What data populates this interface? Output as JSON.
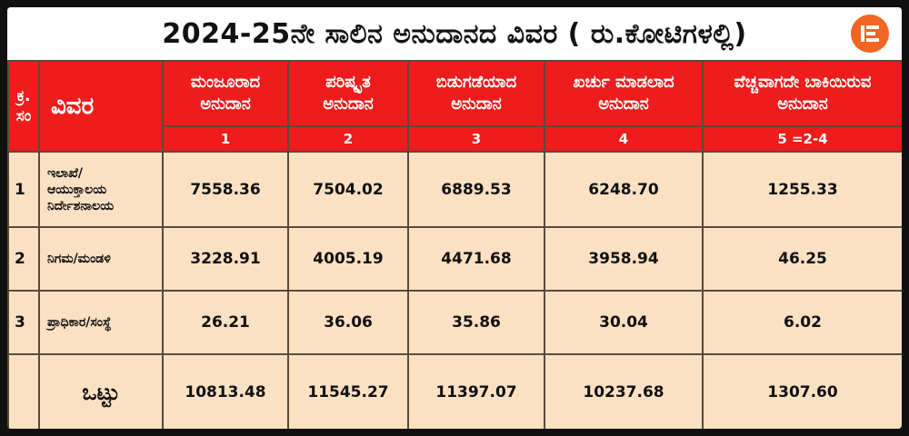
{
  "title": "2024-25ನೇ ಸಾಲಿನ ಅನುದಾನದ ವಿವರ ( ರು.ಕೋಟಿಗಳಲ್ಲಿ)",
  "logo_icon": "brand-e-logo",
  "colors": {
    "header_red": "#ee1c1c",
    "body_bg": "#fbe1c3",
    "logo_orange": "#f26522"
  },
  "table": {
    "headers": {
      "sn": "ಕ್ರ. ಸಂ",
      "desc": "ವಿವರ",
      "cols": [
        {
          "line1": "ಮಂಜೂರಾದ",
          "line2": "ಅನುದಾನ",
          "index": "1"
        },
        {
          "line1": "ಪರಿಷ್ಕೃತ",
          "line2": "ಅನುದಾನ",
          "index": "2"
        },
        {
          "line1": "ಬಿಡುಗಡೆಯಾದ",
          "line2": "ಅನುದಾನ",
          "index": "3"
        },
        {
          "line1": "ಖರ್ಚು ಮಾಡಲಾದ",
          "line2": "ಅನುದಾನ",
          "index": "4"
        },
        {
          "line1": "ವೆಚ್ಚವಾಗದೇ ಬಾಕಿಯಿರುವ",
          "line2": "ಅನುದಾನ",
          "index": "5 =2-4"
        }
      ]
    },
    "rows": [
      {
        "sn": "1",
        "desc_line1": "ಇಲಾಖೆ/",
        "desc_line2": "ಆಯುಕ್ತಾಲಯ",
        "desc_line3": "ನಿರ್ದೇಶನಾಲಯ",
        "values": [
          "7558.36",
          "7504.02",
          "6889.53",
          "6248.70",
          "1255.33"
        ]
      },
      {
        "sn": "2",
        "desc_line1": "ನಿಗಮ/ಮಂಡಳಿ",
        "desc_line2": "",
        "desc_line3": "",
        "values": [
          "3228.91",
          "4005.19",
          "4471.68",
          "3958.94",
          "46.25"
        ]
      },
      {
        "sn": "3",
        "desc_line1": "ಪ್ರಾಧಿಕಾರ/ಸಂಸ್ಥೆ",
        "desc_line2": "",
        "desc_line3": "",
        "values": [
          "26.21",
          "36.06",
          "35.86",
          "30.04",
          "6.02"
        ]
      }
    ],
    "total": {
      "label": "ಒಟ್ಟು",
      "values": [
        "10813.48",
        "11545.27",
        "11397.07",
        "10237.68",
        "1307.60"
      ]
    }
  }
}
